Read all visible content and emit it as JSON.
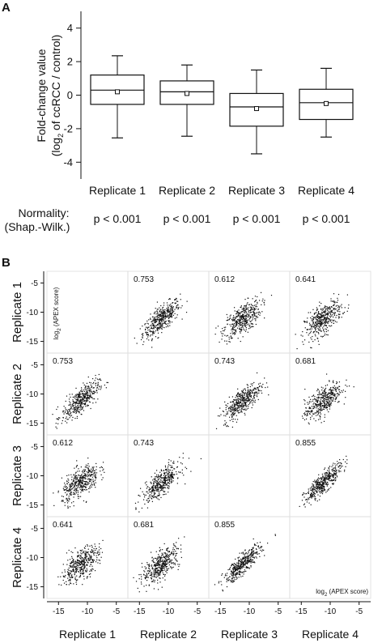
{
  "panel_a_letter": "A",
  "panel_b_letter": "B",
  "normality": {
    "label_line1": "Normality:",
    "label_line2": "(Shap.-Wilk.)",
    "values": [
      "p < 0.001",
      "p < 0.001",
      "p < 0.001",
      "p < 0.001"
    ]
  },
  "chart_data": [
    {
      "type": "box",
      "ylabel_line1": "Fold-change value",
      "ylabel_line2_pre": "(log",
      "ylabel_line2_sub": "2",
      "ylabel_line2_post": " of ccRCC / control)",
      "ylim": [
        -5,
        5
      ],
      "yticks": [
        -4,
        -2,
        0,
        2,
        4
      ],
      "categories": [
        "Replicate 1",
        "Replicate 2",
        "Replicate 3",
        "Replicate 4"
      ],
      "boxes": [
        {
          "whisker_low": -2.55,
          "q1": -0.55,
          "median": 0.3,
          "q3": 1.2,
          "whisker_high": 2.35,
          "mean": 0.2
        },
        {
          "whisker_low": -2.45,
          "q1": -0.55,
          "median": 0.2,
          "q3": 0.85,
          "whisker_high": 1.8,
          "mean": 0.1
        },
        {
          "whisker_low": -3.5,
          "q1": -1.85,
          "median": -0.7,
          "q3": 0.1,
          "whisker_high": 1.5,
          "mean": -0.8
        },
        {
          "whisker_low": -2.5,
          "q1": -1.45,
          "median": -0.45,
          "q3": 0.35,
          "whisker_high": 1.6,
          "mean": -0.5
        }
      ]
    },
    {
      "type": "scatter",
      "row_labels": [
        "Replicate 1",
        "Replicate 2",
        "Replicate 3",
        "Replicate 4"
      ],
      "col_labels": [
        "Replicate 1",
        "Replicate 2",
        "Replicate 3",
        "Replicate 4"
      ],
      "axis_ticks": [
        -15,
        -10,
        -5
      ],
      "axis_range": [
        -17,
        -3
      ],
      "axis_label_pre": "log",
      "axis_label_sub": "2",
      "axis_label_post": " (APEX score)",
      "correlations": [
        [
          "",
          "0.753",
          "0.612",
          "0.641"
        ],
        [
          "0.753",
          "",
          "0.743",
          "0.681"
        ],
        [
          "0.612",
          "0.743",
          "",
          "0.855"
        ],
        [
          "0.641",
          "0.681",
          "0.855",
          ""
        ]
      ],
      "point_cloud": {
        "center": -11.2,
        "spread": 1.6
      }
    }
  ]
}
